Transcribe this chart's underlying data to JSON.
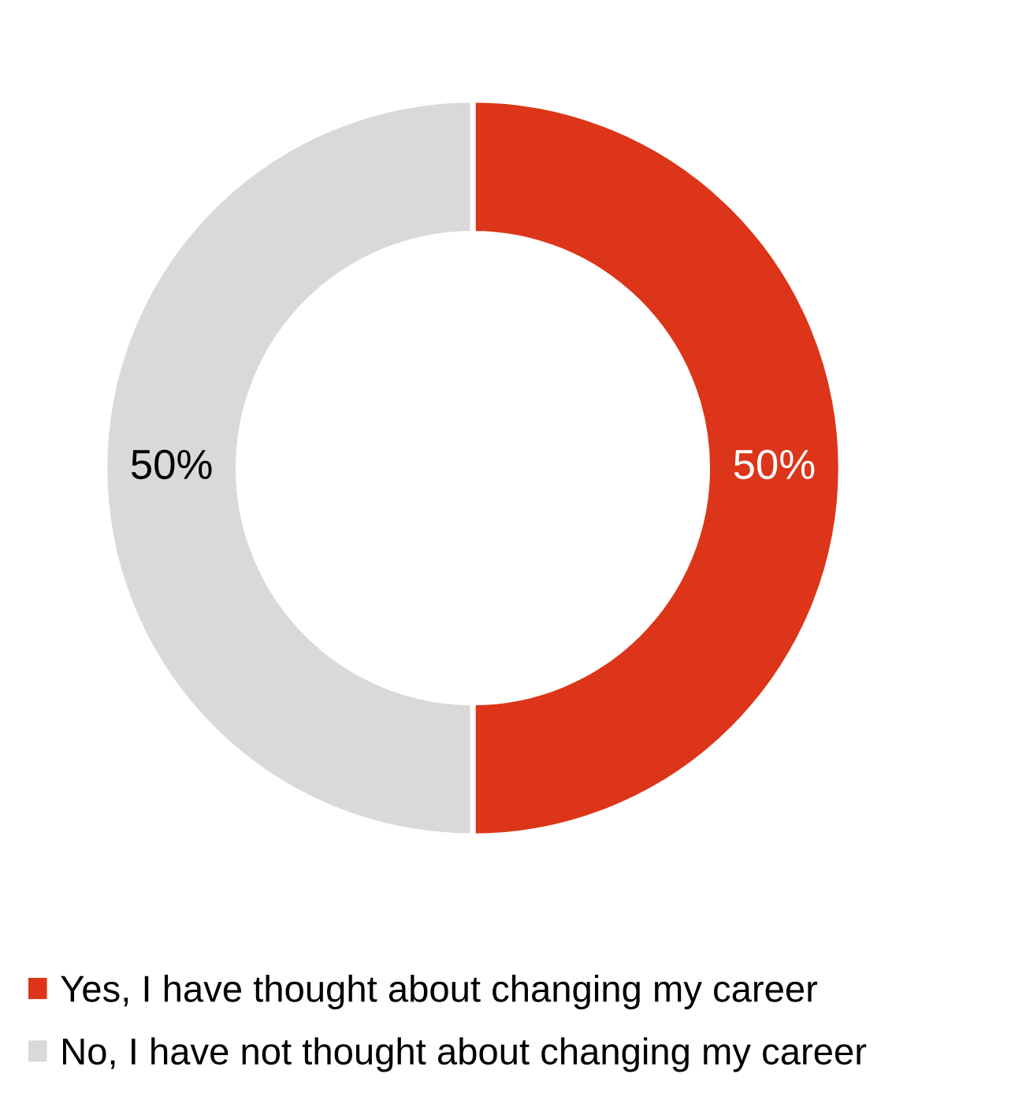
{
  "chart_data": {
    "type": "donut",
    "categories": [
      "Yes, I have thought about changing my career",
      "No, I have not thought about changing my career"
    ],
    "values": [
      50,
      50
    ],
    "colors": [
      "#dc3519",
      "#d9d9d9"
    ],
    "value_labels": [
      "50%",
      "50%"
    ],
    "legend": "bottom"
  }
}
